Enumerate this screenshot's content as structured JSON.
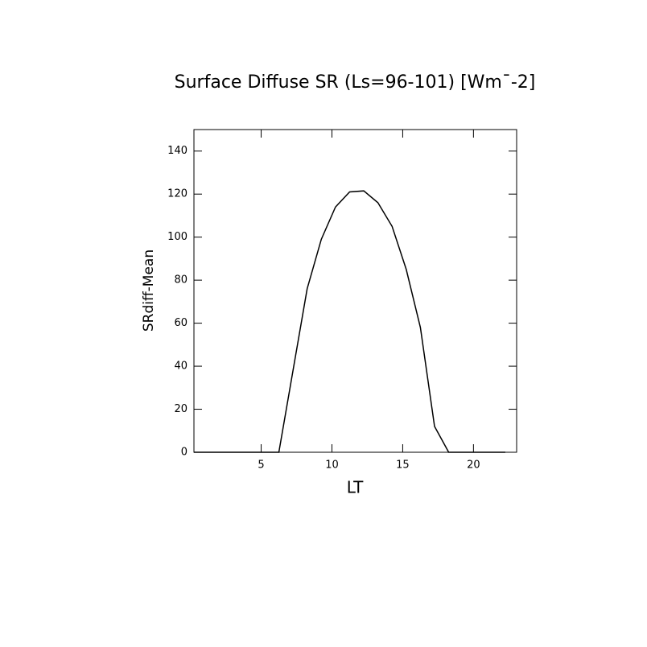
{
  "chart_data": {
    "type": "line",
    "title": "Surface Diffuse SR (Ls=96-101) [Wm¯-2]",
    "xlabel": "LT",
    "ylabel": "SRdiff-Mean",
    "x": [
      0.25,
      1.25,
      2.25,
      3.25,
      4.25,
      5.25,
      6.25,
      7.25,
      8.25,
      9.25,
      10.25,
      11.25,
      12.25,
      13.25,
      14.25,
      15.25,
      16.25,
      17.25,
      18.25,
      19.25,
      20.25,
      21.25,
      22.25
    ],
    "series": [
      {
        "color": "#000000",
        "values": [
          0,
          0,
          0,
          0,
          0,
          0,
          0,
          38,
          76,
          99,
          114,
          121,
          121.5,
          116,
          105,
          85,
          58,
          12,
          0,
          0,
          0,
          0,
          0
        ]
      }
    ],
    "xlim": [
      0.25,
      23.05
    ],
    "ylim": [
      0,
      150
    ],
    "xticks": [
      5,
      10,
      15,
      20
    ],
    "yticks": [
      0,
      20,
      40,
      60,
      80,
      100,
      120,
      140
    ]
  }
}
